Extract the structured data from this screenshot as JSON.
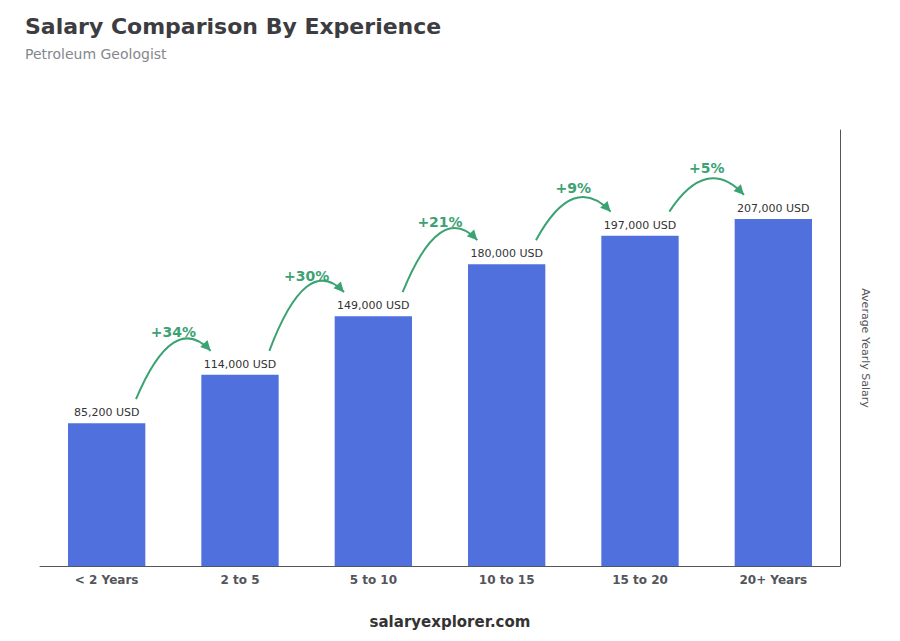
{
  "chart_data": {
    "type": "bar",
    "title": "Salary Comparison By Experience",
    "subtitle": "Petroleum Geologist",
    "categories": [
      "< 2 Years",
      "2 to 5",
      "5 to 10",
      "10 to 15",
      "15 to 20",
      "20+ Years"
    ],
    "values": [
      85200,
      114000,
      149000,
      180000,
      197000,
      207000
    ],
    "value_labels": [
      "85,200 USD",
      "114,000 USD",
      "149,000 USD",
      "180,000 USD",
      "197,000 USD",
      "207,000 USD"
    ],
    "data_labels": true,
    "annotations": [
      "+34%",
      "+30%",
      "+21%",
      "+9%",
      "+5%"
    ],
    "ylabel": "Average Yearly Salary",
    "footer": "salaryexplorer.com",
    "ylim": [
      0,
      260000
    ],
    "tick_labels": "x",
    "grid": false
  }
}
